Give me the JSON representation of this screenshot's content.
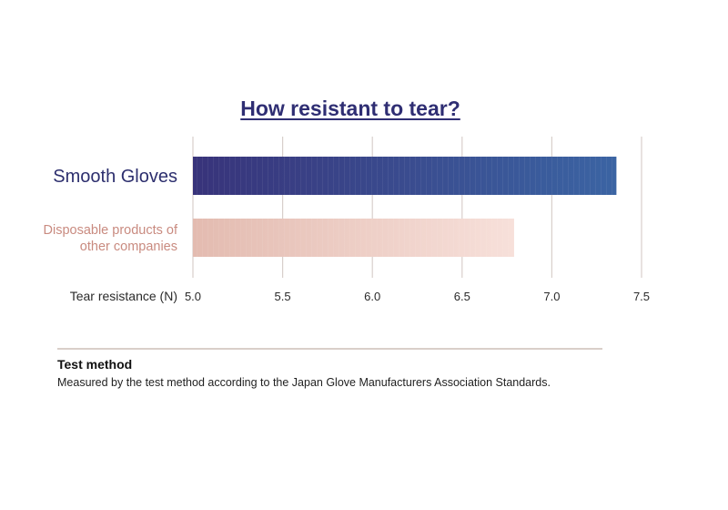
{
  "chart_data": {
    "type": "bar",
    "orientation": "horizontal",
    "title": "How resistant to tear?",
    "xlabel": "Tear resistance (N)",
    "ylabel": "",
    "xlim": [
      5.0,
      7.5
    ],
    "ticks": [
      "5.0",
      "5.5",
      "6.0",
      "6.5",
      "7.0",
      "7.5"
    ],
    "tick_values": [
      5.0,
      5.5,
      6.0,
      6.5,
      7.0,
      7.5
    ],
    "grid": "vertical",
    "categories": [
      {
        "label_lines": [
          "Smooth Gloves"
        ],
        "value": 7.36,
        "color_start": "#38337a",
        "color_end": "#3b64a3"
      },
      {
        "label_lines": [
          "Disposable products of",
          "other companies"
        ],
        "value": 6.79,
        "color_start": "#e3bbb0",
        "color_end": "#f7e0da"
      }
    ]
  },
  "note": {
    "heading": "Test method",
    "text": "Measured by the test method according to the Japan Glove Manufacturers Association Standards."
  },
  "colors": {
    "title": "#2f2e73",
    "grid": "#d8cfcb"
  }
}
